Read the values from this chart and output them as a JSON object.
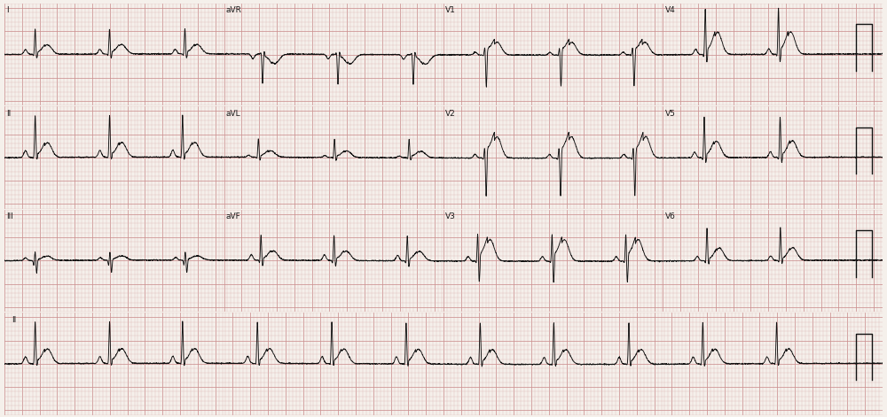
{
  "bg_color": "#f5f0eb",
  "grid_minor_color": "#ddb8b8",
  "grid_major_color": "#cc9090",
  "ecg_color": "#111111",
  "ecg_linewidth": 0.65,
  "fig_width": 10.0,
  "fig_height": 4.71,
  "dpi": 100,
  "label_fontsize": 6.5,
  "lead_layout": [
    [
      "I",
      "aVR",
      "V1",
      "V4"
    ],
    [
      "II",
      "aVL",
      "V2",
      "V5"
    ],
    [
      "III",
      "aVF",
      "V3",
      "V6"
    ],
    [
      "II",
      null,
      null,
      null
    ]
  ],
  "lead_params": {
    "I": {
      "p": 0.1,
      "q": -0.05,
      "r": 0.55,
      "s": -0.12,
      "t": 0.18,
      "st": 0.04,
      "rr": 0.85
    },
    "II": {
      "p": 0.15,
      "q": -0.04,
      "r": 0.9,
      "s": -0.08,
      "t": 0.28,
      "st": 0.06,
      "rr": 0.85
    },
    "III": {
      "p": 0.06,
      "q": -0.12,
      "r": 0.2,
      "s": -0.28,
      "t": 0.08,
      "st": 0.02,
      "rr": 0.85
    },
    "aVR": {
      "p": -0.1,
      "q": 0.05,
      "r": -0.65,
      "s": 0.08,
      "t": -0.18,
      "st": -0.04,
      "rr": 0.85
    },
    "aVL": {
      "p": 0.04,
      "q": -0.04,
      "r": 0.4,
      "s": -0.08,
      "t": 0.12,
      "st": 0.03,
      "rr": 0.85
    },
    "aVF": {
      "p": 0.12,
      "q": -0.08,
      "r": 0.55,
      "s": -0.15,
      "t": 0.18,
      "st": 0.04,
      "rr": 0.85
    },
    "V1": {
      "p": 0.06,
      "q": -0.02,
      "r": 0.18,
      "s": -0.7,
      "t": 0.2,
      "st": 0.12,
      "rr": 0.85
    },
    "V2": {
      "p": 0.08,
      "q": -0.04,
      "r": 0.25,
      "s": -0.85,
      "t": 0.35,
      "st": 0.18,
      "rr": 0.85
    },
    "V3": {
      "p": 0.1,
      "q": -0.06,
      "r": 0.6,
      "s": -0.5,
      "t": 0.38,
      "st": 0.14,
      "rr": 0.85
    },
    "V4": {
      "p": 0.12,
      "q": -0.08,
      "r": 1.0,
      "s": -0.22,
      "t": 0.42,
      "st": 0.1,
      "rr": 0.85
    },
    "V5": {
      "p": 0.12,
      "q": -0.08,
      "r": 0.88,
      "s": -0.15,
      "t": 0.32,
      "st": 0.06,
      "rr": 0.85
    },
    "V6": {
      "p": 0.1,
      "q": -0.07,
      "r": 0.72,
      "s": -0.1,
      "t": 0.25,
      "st": 0.04,
      "rr": 0.85
    }
  }
}
